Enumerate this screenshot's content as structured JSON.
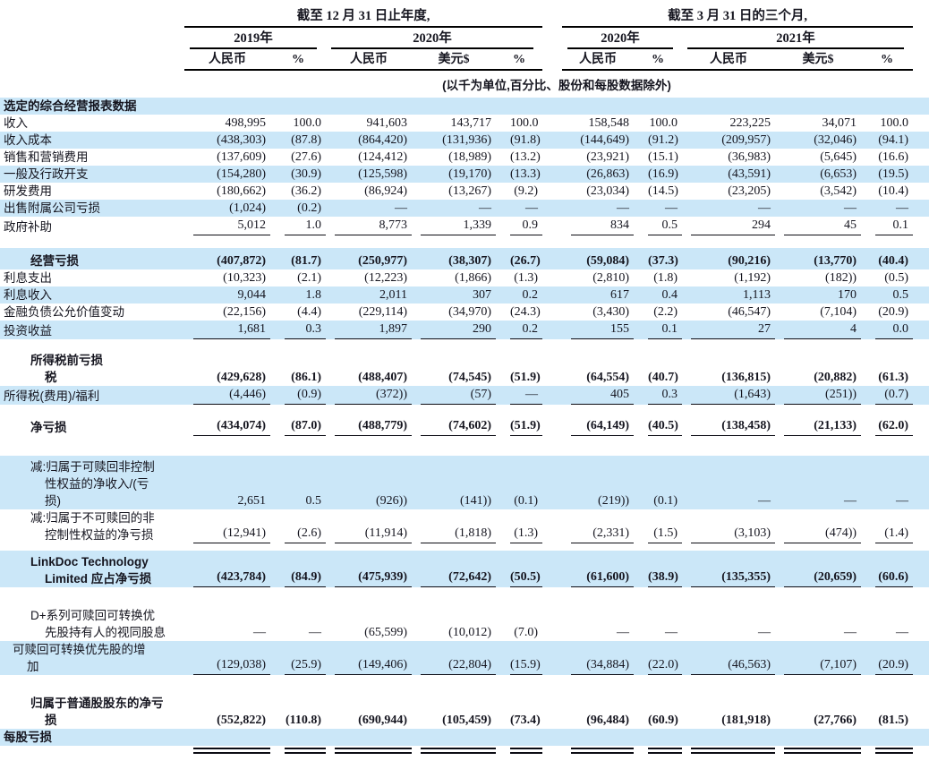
{
  "table": {
    "group_headers": [
      {
        "label": "截至 12 月 31 日止年度,"
      },
      {
        "label": "截至 3 月 31 日的三个月,"
      }
    ],
    "year_headers": [
      "2019年",
      "2020年",
      "2020年",
      "2021年"
    ],
    "col_headers": [
      "人民币",
      "%",
      "人民币",
      "美元$",
      "%",
      "人民币",
      "%",
      "人民币",
      "美元$",
      "%"
    ],
    "unit_note": "(以千为单位,百分比、股份和每股数据除外)",
    "accent_color": "#cbe7f8",
    "rows": [
      {
        "label_lines": [
          "选定的综合经营报表数据"
        ],
        "indents": [
          0
        ],
        "bold": true,
        "bg": "blue",
        "rule": null,
        "values": null
      },
      {
        "label_lines": [
          "收入"
        ],
        "indents": [
          0
        ],
        "bold": false,
        "bg": "white",
        "rule": null,
        "values": [
          "498,995",
          "100.0",
          "941,603",
          "143,717",
          "100.0",
          "158,548",
          "100.0",
          "223,225",
          "34,071",
          "100.0"
        ]
      },
      {
        "label_lines": [
          "收入成本"
        ],
        "indents": [
          0
        ],
        "bold": false,
        "bg": "blue",
        "rule": null,
        "values": [
          "(438,303)",
          "(87.8)",
          "(864,420)",
          "(131,936)",
          "(91.8)",
          "(144,649)",
          "(91.2)",
          "(209,957)",
          "(32,046)",
          "(94.1)"
        ]
      },
      {
        "label_lines": [
          "销售和营销费用"
        ],
        "indents": [
          0
        ],
        "bold": false,
        "bg": "white",
        "rule": null,
        "values": [
          "(137,609)",
          "(27.6)",
          "(124,412)",
          "(18,989)",
          "(13.2)",
          "(23,921)",
          "(15.1)",
          "(36,983)",
          "(5,645)",
          "(16.6)"
        ]
      },
      {
        "label_lines": [
          "一般及行政开支"
        ],
        "indents": [
          0
        ],
        "bold": false,
        "bg": "blue",
        "rule": null,
        "values": [
          "(154,280)",
          "(30.9)",
          "(125,598)",
          "(19,170)",
          "(13.3)",
          "(26,863)",
          "(16.9)",
          "(43,591)",
          "(6,653)",
          "(19.5)"
        ]
      },
      {
        "label_lines": [
          "研发费用"
        ],
        "indents": [
          0
        ],
        "bold": false,
        "bg": "white",
        "rule": null,
        "values": [
          "(180,662)",
          "(36.2)",
          "(86,924)",
          "(13,267)",
          "(9.2)",
          "(23,034)",
          "(14.5)",
          "(23,205)",
          "(3,542)",
          "(10.4)"
        ]
      },
      {
        "label_lines": [
          "出售附属公司亏损"
        ],
        "indents": [
          0
        ],
        "bold": false,
        "bg": "blue",
        "rule": null,
        "values": [
          "(1,024)",
          "(0.2)",
          "—",
          "—",
          "—",
          "—",
          "—",
          "—",
          "—",
          "—"
        ]
      },
      {
        "label_lines": [
          "政府补助"
        ],
        "indents": [
          0
        ],
        "bold": false,
        "bg": "white",
        "rule": "single",
        "values": [
          "5,012",
          "1.0",
          "8,773",
          "1,339",
          "0.9",
          "834",
          "0.5",
          "294",
          "45",
          "0.1"
        ]
      },
      {
        "label_lines": [
          "经营亏损"
        ],
        "indents": [
          1
        ],
        "bold": true,
        "bg": "blue",
        "rule": null,
        "gap_before": 14,
        "pad_top": 5,
        "values": [
          "(407,872)",
          "(81.7)",
          "(250,977)",
          "(38,307)",
          "(26.7)",
          "(59,084)",
          "(37.3)",
          "(90,216)",
          "(13,770)",
          "(40.4)"
        ]
      },
      {
        "label_lines": [
          "利息支出"
        ],
        "indents": [
          0
        ],
        "bold": false,
        "bg": "white",
        "rule": null,
        "values": [
          "(10,323)",
          "(2.1)",
          "(12,223)",
          "(1,866)",
          "(1.3)",
          "(2,810)",
          "(1.8)",
          "(1,192)",
          "(182))",
          "(0.5)"
        ]
      },
      {
        "label_lines": [
          "利息收入"
        ],
        "indents": [
          0
        ],
        "bold": false,
        "bg": "blue",
        "rule": null,
        "values": [
          "9,044",
          "1.8",
          "2,011",
          "307",
          "0.2",
          "617",
          "0.4",
          "1,113",
          "170",
          "0.5"
        ]
      },
      {
        "label_lines": [
          "金融负债公允价值变动"
        ],
        "indents": [
          0
        ],
        "bold": false,
        "bg": "white",
        "rule": null,
        "values": [
          "(22,156)",
          "(4.4)",
          "(229,114)",
          "(34,970)",
          "(24.3)",
          "(3,430)",
          "(2.2)",
          "(46,547)",
          "(7,104)",
          "(20.9)"
        ]
      },
      {
        "label_lines": [
          "投资收益"
        ],
        "indents": [
          0
        ],
        "bold": false,
        "bg": "blue",
        "rule": "single",
        "values": [
          "1,681",
          "0.3",
          "1,897",
          "290",
          "0.2",
          "155",
          "0.1",
          "27",
          "4",
          "0.0"
        ]
      },
      {
        "label_lines": [
          "所得税前亏损",
          "税"
        ],
        "indents": [
          1,
          2
        ],
        "bold": true,
        "bg": "white",
        "rule": null,
        "gap_before": 14,
        "values": [
          "(429,628)",
          "(86.1)",
          "(488,407)",
          "(74,545)",
          "(51.9)",
          "(64,554)",
          "(40.7)",
          "(136,815)",
          "(20,882)",
          "(61.3)"
        ]
      },
      {
        "label_lines": [
          "所得税(费用)/福利"
        ],
        "indents": [
          0
        ],
        "bold": false,
        "bg": "blue",
        "rule": "single",
        "values": [
          "(4,446)",
          "(0.9)",
          "(372))",
          "(57)",
          "—",
          "405",
          "0.3",
          "(1,643)",
          "(251))",
          "(0.7)"
        ]
      },
      {
        "label_lines": [
          "净亏损"
        ],
        "indents": [
          1
        ],
        "bold": true,
        "bg": "white",
        "rule": "single",
        "gap_before": 14,
        "values": [
          "(434,074)",
          "(87.0)",
          "(488,779)",
          "(74,602)",
          "(51.9)",
          "(64,149)",
          "(40.5)",
          "(138,458)",
          "(21,133)",
          "(62.0)"
        ]
      },
      {
        "label_lines": [
          "减:归属于可赎回非控制",
          "性权益的净收入/(亏",
          "损)"
        ],
        "indents": [
          1,
          2,
          2
        ],
        "bold": false,
        "bg": "blue",
        "rule": null,
        "gap_before": 22,
        "pad_top": 3,
        "values": [
          "2,651",
          "0.5",
          "(926))",
          "(141))",
          "(0.1)",
          "(219))",
          "(0.1)",
          "—",
          "—",
          "—"
        ]
      },
      {
        "label_lines": [
          "减:归属于不可赎回的非",
          "控制性权益的净亏损"
        ],
        "indents": [
          1,
          2
        ],
        "bold": false,
        "bg": "white",
        "rule": "single",
        "values": [
          "(12,941)",
          "(2.6)",
          "(11,914)",
          "(1,818)",
          "(1.3)",
          "(2,331)",
          "(1.5)",
          "(3,103)",
          "(474))",
          "(1.4)"
        ]
      },
      {
        "label_lines": [
          "LinkDoc Technology",
          "Limited 应占净亏损"
        ],
        "indents": [
          1,
          2
        ],
        "bold": true,
        "bg": "blue",
        "rule": "single",
        "gap_before": 8,
        "pad_top": 3,
        "values": [
          "(423,784)",
          "(84.9)",
          "(475,939)",
          "(72,642)",
          "(50.5)",
          "(61,600)",
          "(38.9)",
          "(135,355)",
          "(20,659)",
          "(60.6)"
        ]
      },
      {
        "label_lines": [
          "D+系列可赎回可转换优",
          "先股持有人的视同股息"
        ],
        "indents": [
          1,
          2
        ],
        "bold": false,
        "bg": "white",
        "rule": null,
        "gap_before": 22,
        "values": [
          "—",
          "—",
          "(65,599)",
          "(10,012)",
          "(7.0)",
          "—",
          "—",
          "—",
          "—",
          "—"
        ]
      },
      {
        "label_lines": [
          "可赎回可转换优先股的增",
          "加"
        ],
        "indents": [
          3,
          4
        ],
        "bold": false,
        "bg": "blue",
        "rule": "single",
        "values": [
          "(129,038)",
          "(25.9)",
          "(149,406)",
          "(22,804)",
          "(15.9)",
          "(34,884)",
          "(22.0)",
          "(46,563)",
          "(7,107)",
          "(20.9)"
        ]
      },
      {
        "label_lines": [
          "归属于普通股股东的净亏",
          "损"
        ],
        "indents": [
          1,
          2
        ],
        "bold": true,
        "bg": "white",
        "rule": null,
        "gap_before": 22,
        "values": [
          "(552,822)",
          "(110.8)",
          "(690,944)",
          "(105,459)",
          "(73.4)",
          "(96,484)",
          "(60.9)",
          "(181,918)",
          "(27,766)",
          "(81.5)"
        ]
      },
      {
        "label_lines": [
          "每股亏损"
        ],
        "indents": [
          0
        ],
        "bold": true,
        "bg": "blue",
        "rule": null,
        "values": null
      },
      {
        "label_lines": [],
        "indents": [],
        "bold": false,
        "bg": "white",
        "rule": "double",
        "values": [
          "",
          "",
          "",
          "",
          "",
          "",
          "",
          "",
          "",
          ""
        ]
      }
    ]
  }
}
